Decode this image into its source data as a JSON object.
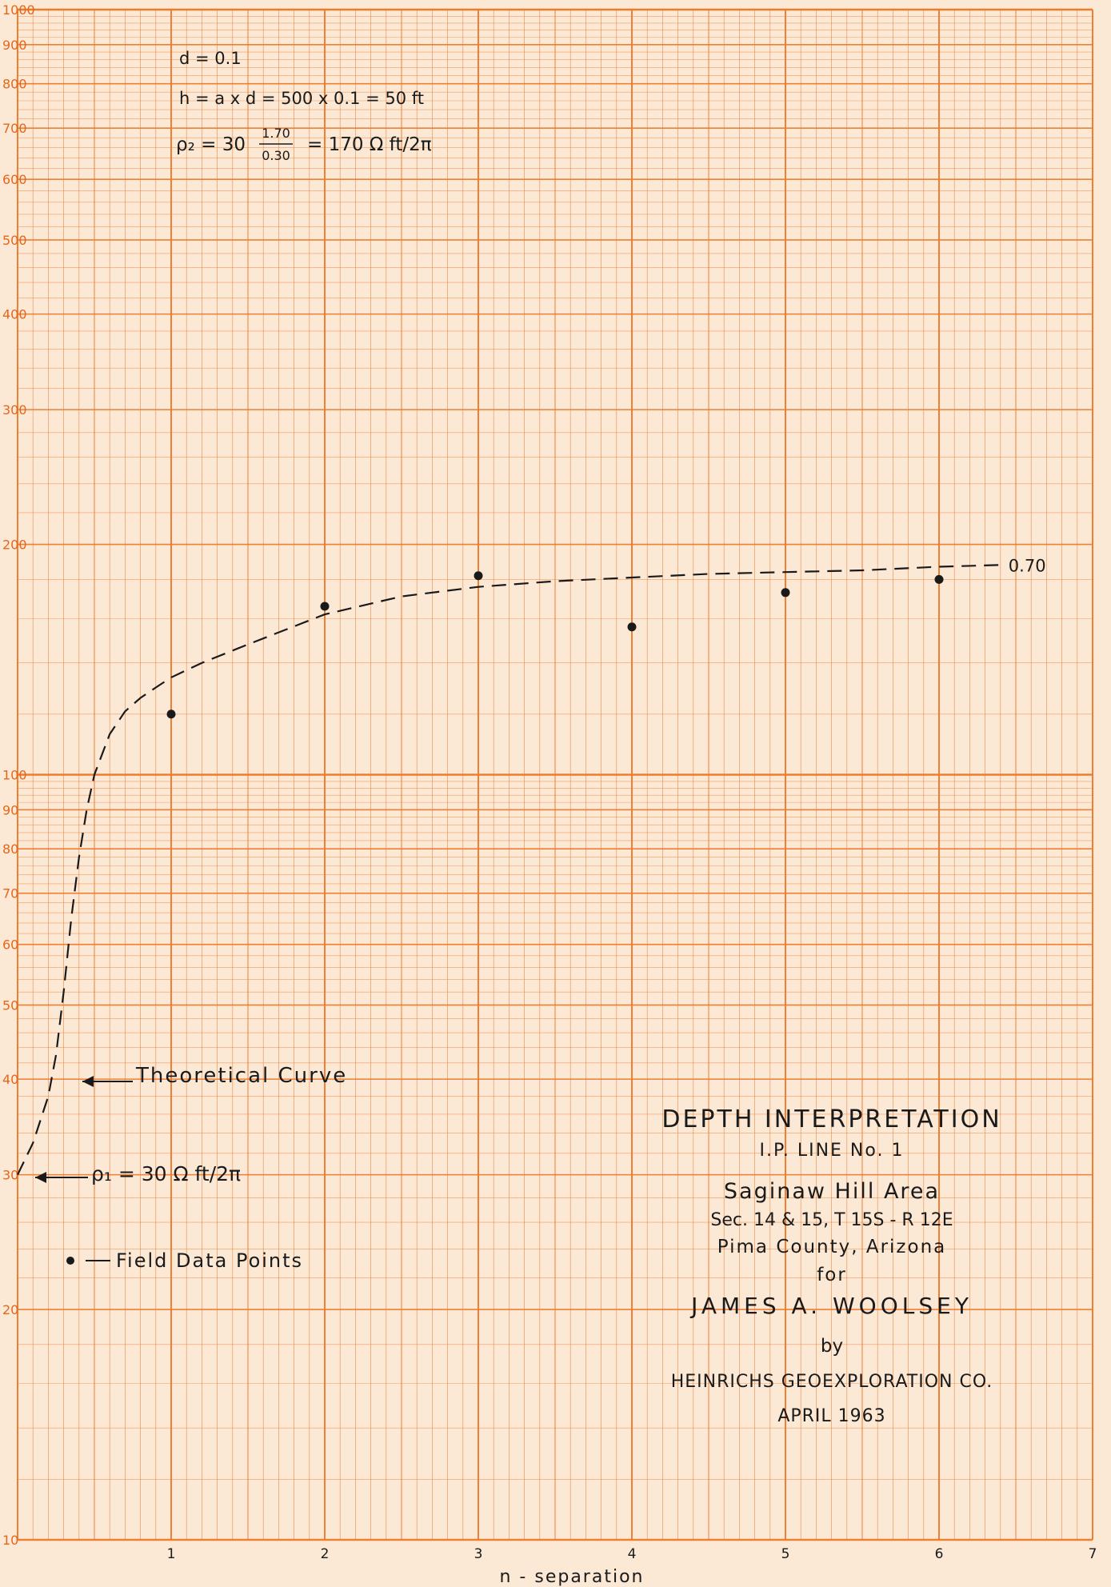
{
  "chart_data": {
    "type": "scatter",
    "x_scale": "linear",
    "y_scale": "log",
    "xlim": [
      0,
      7
    ],
    "ylim": [
      10,
      1000
    ],
    "grid": true,
    "xlabel": "n - separation",
    "ylabel": "",
    "x_ticks": [
      "1",
      "2",
      "3",
      "4",
      "5",
      "6",
      "7"
    ],
    "y_ticks": [
      {
        "value": 10,
        "label": "10"
      },
      {
        "value": 20,
        "label": "20"
      },
      {
        "value": 30,
        "label": "30"
      },
      {
        "value": 40,
        "label": "40"
      },
      {
        "value": 50,
        "label": "50"
      },
      {
        "value": 60,
        "label": "60"
      },
      {
        "value": 70,
        "label": "70"
      },
      {
        "value": 80,
        "label": "80"
      },
      {
        "value": 90,
        "label": "90"
      },
      {
        "value": 100,
        "label": "100"
      },
      {
        "value": 200,
        "label": "200"
      },
      {
        "value": 300,
        "label": "300"
      },
      {
        "value": 400,
        "label": "400"
      },
      {
        "value": 500,
        "label": "500"
      },
      {
        "value": 600,
        "label": "600"
      },
      {
        "value": 700,
        "label": "700"
      },
      {
        "value": 800,
        "label": "800"
      },
      {
        "value": 900,
        "label": "900"
      },
      {
        "value": 1000,
        "label": "1000"
      }
    ],
    "series": [
      {
        "name": "Field Data Points",
        "kind": "points",
        "x": [
          1,
          2,
          3,
          4,
          5,
          6
        ],
        "y": [
          120,
          166,
          182,
          156,
          173,
          180
        ]
      },
      {
        "name": "Theoretical Curve",
        "kind": "dashed-line",
        "end_label": "0.70",
        "x": [
          0,
          0.1,
          0.2,
          0.25,
          0.3,
          0.35,
          0.4,
          0.45,
          0.5,
          0.6,
          0.7,
          0.8,
          0.9,
          1.0,
          1.2,
          1.5,
          2.0,
          2.5,
          3.0,
          3.5,
          4.0,
          4.5,
          5.0,
          5.5,
          6.0,
          6.4
        ],
        "y": [
          30,
          33,
          38,
          43,
          52,
          65,
          78,
          90,
          100,
          113,
          121,
          126,
          130,
          134,
          140,
          148,
          162,
          171,
          176,
          179,
          181,
          183,
          184,
          185,
          187,
          188
        ]
      }
    ]
  },
  "annotations": {
    "formula_d": "d = 0.1",
    "formula_h": "h = a x d = 500 x 0.1 = 50 ft",
    "formula_rho2_prefix": "ρ₂ = 30",
    "formula_rho2_num": "1.70",
    "formula_rho2_den": "0.30",
    "formula_rho2_result": "= 170 Ω ft/2π",
    "theoretical_curve": "Theoretical Curve",
    "rho1": "ρ₁ = 30 Ω ft/2π",
    "field_points": "Field Data Points"
  },
  "title_block": {
    "line1": "DEPTH INTERPRETATION",
    "line2": "I.P. LINE No. 1",
    "line3": "Saginaw Hill Area",
    "line4": "Sec. 14 & 15, T 15S - R 12E",
    "line5": "Pima County, Arizona",
    "line6": "for",
    "line7": "JAMES A. WOOLSEY",
    "line8": "by",
    "line9": "HEINRICHS GEOEXPLORATION CO.",
    "line10": "APRIL 1963"
  },
  "colors": {
    "paper": "#fbe9d6",
    "grid": "#ee7a2b",
    "ink": "#1a1a1a"
  }
}
